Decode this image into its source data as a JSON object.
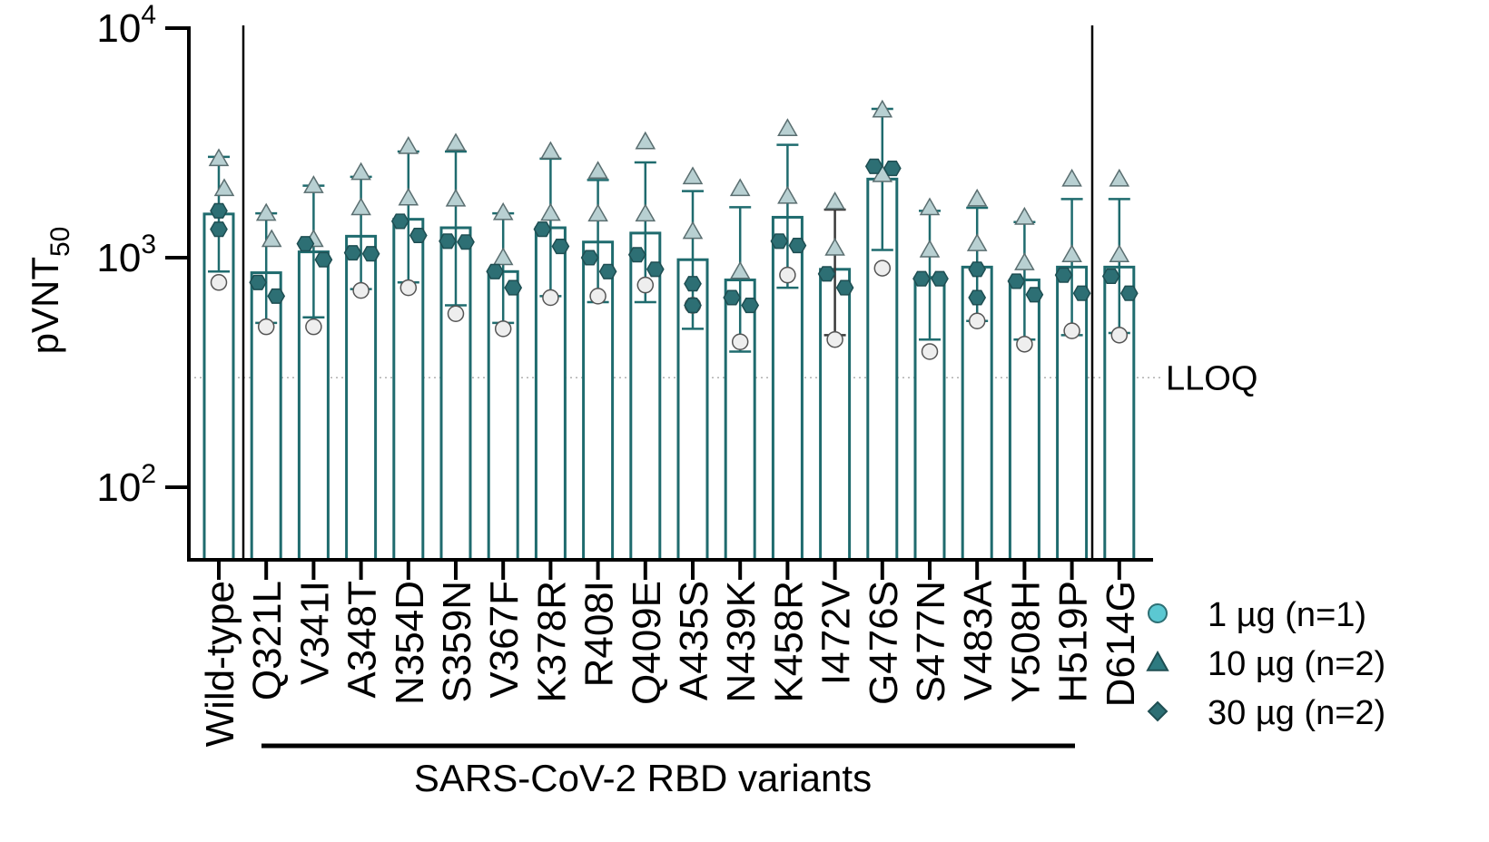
{
  "chart_data": {
    "type": "bar",
    "scale": "log",
    "ylabel_main": "pVNT",
    "ylabel_sub": "50",
    "ylim": [
      50,
      10000
    ],
    "yticks": [
      {
        "value": 100,
        "base": "10",
        "exp": "2"
      },
      {
        "value": 1000,
        "base": "10",
        "exp": "3"
      },
      {
        "value": 10000,
        "base": "10",
        "exp": "4"
      }
    ],
    "lloq": {
      "value": 300,
      "label": "LLOQ"
    },
    "group_label": "SARS-CoV-2  RBD variants",
    "grid": false,
    "legend_position": "bottom-right",
    "legend": [
      {
        "key": "1ug",
        "label": "1 µg (n=1)",
        "marker": "circle",
        "color": "#5bc8d2"
      },
      {
        "key": "10ug",
        "label": "10 µg (n=2)",
        "marker": "triangle",
        "color": "#2d7a80"
      },
      {
        "key": "30ug",
        "label": "30 µg (n=2)",
        "marker": "diamond",
        "color": "#2d6f74"
      }
    ],
    "categories": [
      "Wild-type",
      "Q321L",
      "V341I",
      "A348T",
      "N354D",
      "S359N",
      "V367F",
      "K378R",
      "R408I",
      "Q409E",
      "A435S",
      "N439K",
      "K458R",
      "I472V",
      "G476S",
      "S477N",
      "V483A",
      "Y508H",
      "H519P",
      "D614G"
    ],
    "bars": [
      {
        "value": 1550,
        "err_low": 870,
        "err_high": 2750,
        "p1": [
          780
        ],
        "p10": [
          2700,
          2000
        ],
        "p30": [
          1600,
          1330
        ]
      },
      {
        "value": 860,
        "err_low": 520,
        "err_high": 1560,
        "p1": [
          500
        ],
        "p10": [
          1560,
          1200
        ],
        "p30": [
          780,
          680
        ]
      },
      {
        "value": 1060,
        "err_low": 550,
        "err_high": 2060,
        "p1": [
          500
        ],
        "p10": [
          2060,
          1200
        ],
        "p30": [
          1150,
          980
        ]
      },
      {
        "value": 1240,
        "err_low": 730,
        "err_high": 2250,
        "p1": [
          720
        ],
        "p10": [
          2350,
          1650
        ],
        "p30": [
          1050,
          1040
        ]
      },
      {
        "value": 1470,
        "err_low": 780,
        "err_high": 2900,
        "p1": [
          740
        ],
        "p10": [
          3050,
          1820
        ],
        "p30": [
          1440,
          1250
        ]
      },
      {
        "value": 1350,
        "err_low": 620,
        "err_high": 2900,
        "p1": [
          570
        ],
        "p10": [
          3150,
          1800
        ],
        "p30": [
          1180,
          1170
        ]
      },
      {
        "value": 870,
        "err_low": 520,
        "err_high": 1560,
        "p1": [
          490
        ],
        "p10": [
          1570,
          1000
        ],
        "p30": [
          870,
          740
        ]
      },
      {
        "value": 1350,
        "err_low": 680,
        "err_high": 2700,
        "p1": [
          670
        ],
        "p10": [
          2900,
          1560
        ],
        "p30": [
          1330,
          1120
        ]
      },
      {
        "value": 1170,
        "err_low": 640,
        "err_high": 2180,
        "p1": [
          680
        ],
        "p10": [
          2380,
          1550
        ],
        "p30": [
          1000,
          870
        ]
      },
      {
        "value": 1280,
        "err_low": 640,
        "err_high": 2600,
        "p1": [
          760
        ],
        "p10": [
          3200,
          1550
        ],
        "p30": [
          1030,
          890
        ]
      },
      {
        "value": 980,
        "err_low": 490,
        "err_high": 1950,
        "p1": [
          620
        ],
        "p10": [
          2250,
          1300
        ],
        "p30": [
          770,
          620
        ]
      },
      {
        "value": 800,
        "err_low": 390,
        "err_high": 1660,
        "p1": [
          430
        ],
        "p10": [
          2000,
          870
        ],
        "p30": [
          670,
          620
        ]
      },
      {
        "value": 1500,
        "err_low": 740,
        "err_high": 3100,
        "p1": [
          840
        ],
        "p10": [
          3650,
          1850
        ],
        "p30": [
          1180,
          1130
        ]
      },
      {
        "value": 890,
        "err_low": 460,
        "err_high": 1620,
        "p1": [
          440
        ],
        "p10": [
          1750,
          1100
        ],
        "p30": [
          850,
          740
        ]
      },
      {
        "value": 2200,
        "err_low": 1080,
        "err_high": 4450,
        "p1": [
          900
        ],
        "p10": [
          4400,
          2300
        ],
        "p30": [
          2500,
          2450
        ]
      },
      {
        "value": 820,
        "err_low": 440,
        "err_high": 1600,
        "p1": [
          390
        ],
        "p10": [
          1650,
          1080
        ],
        "p30": [
          810,
          810
        ]
      },
      {
        "value": 910,
        "err_low": 530,
        "err_high": 1650,
        "p1": [
          530
        ],
        "p10": [
          1800,
          1150
        ],
        "p30": [
          890,
          670
        ]
      },
      {
        "value": 800,
        "err_low": 440,
        "err_high": 1430,
        "p1": [
          420
        ],
        "p10": [
          1500,
          950
        ],
        "p30": [
          790,
          690
        ]
      },
      {
        "value": 910,
        "err_low": 460,
        "err_high": 1800,
        "p1": [
          480
        ],
        "p10": [
          2200,
          1030
        ],
        "p30": [
          840,
          700
        ]
      },
      {
        "value": 910,
        "err_low": 470,
        "err_high": 1800,
        "p1": [
          460
        ],
        "p10": [
          2200,
          1030
        ],
        "p30": [
          830,
          700
        ]
      }
    ]
  }
}
